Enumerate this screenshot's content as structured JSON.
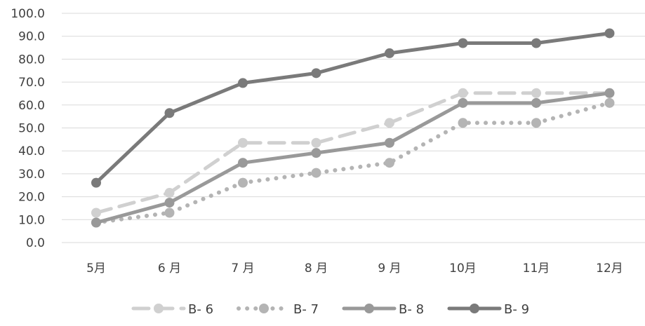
{
  "chart_data": {
    "type": "line",
    "title": "",
    "xlabel": "",
    "ylabel": "",
    "categories": [
      "5月",
      "6 月",
      "7 月",
      "8 月",
      "9 月",
      "10月",
      "11月",
      "12月"
    ],
    "y_ticks": [
      "0.0",
      "10.0",
      "20.0",
      "30.0",
      "40.0",
      "50.0",
      "60.0",
      "70.0",
      "80.0",
      "90.0",
      "100.0"
    ],
    "ylim": [
      0,
      100
    ],
    "grid": true,
    "legend_position": "bottom",
    "series": [
      {
        "name": "B- 6",
        "values": [
          13.0,
          21.7,
          43.5,
          43.5,
          52.2,
          65.2,
          65.2,
          65.2
        ],
        "color": "#d0d0d0",
        "line_style": "dashed"
      },
      {
        "name": "B- 7",
        "values": [
          8.7,
          13.0,
          26.1,
          30.4,
          34.8,
          52.2,
          52.2,
          60.9
        ],
        "color": "#b4b4b4",
        "line_style": "dotted"
      },
      {
        "name": "B- 8",
        "values": [
          8.7,
          17.4,
          34.8,
          39.1,
          43.5,
          60.9,
          60.9,
          65.2
        ],
        "color": "#999999",
        "line_style": "solid"
      },
      {
        "name": "B- 9",
        "values": [
          26.1,
          56.5,
          69.6,
          73.9,
          82.6,
          87.0,
          87.0,
          91.3
        ],
        "color": "#7a7a7a",
        "line_style": "solid"
      }
    ]
  }
}
